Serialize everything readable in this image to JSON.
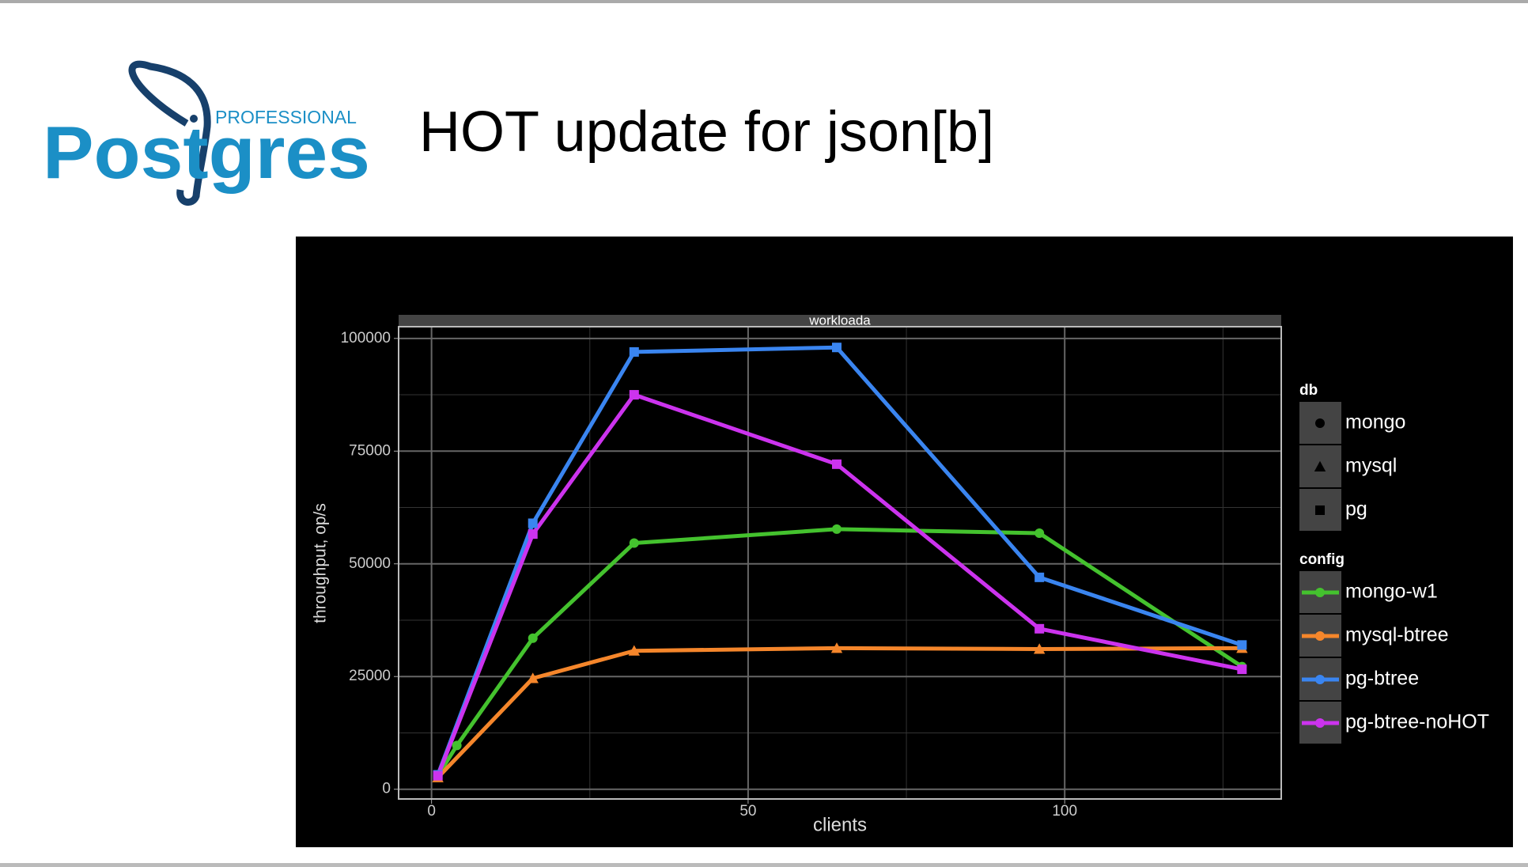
{
  "logo": {
    "name": "Postgres",
    "tag": "PROFESSIONAL"
  },
  "heading": "HOT update  for json[b]",
  "chart_data": {
    "type": "line",
    "strip": "workloada",
    "x_label": "clients",
    "y_label": "throughput, op/s",
    "xlim": [
      -5.2,
      134.2
    ],
    "xticks": [
      0,
      50,
      100
    ],
    "xminor": [
      25,
      75,
      125
    ],
    "ylim": [
      -2160,
      102600
    ],
    "yticks": [
      0,
      25000,
      50000,
      75000,
      100000
    ],
    "yminor": [
      12500,
      37500,
      62500,
      87500
    ],
    "grid": true,
    "shape_legend": {
      "title": "db",
      "items": [
        {
          "name": "mongo",
          "shape": "circle"
        },
        {
          "name": "mysql",
          "shape": "triangle"
        },
        {
          "name": "pg",
          "shape": "square"
        }
      ]
    },
    "legend_title": "config",
    "series": [
      {
        "name": "mongo-w1",
        "color": "#44c22e",
        "shape": "circle",
        "x": [
          1,
          4,
          16,
          32,
          64,
          96,
          128
        ],
        "values": [
          3000,
          9700,
          33500,
          54600,
          57700,
          56800,
          27200
        ]
      },
      {
        "name": "mysql-btree",
        "color": "#f5862b",
        "shape": "triangle",
        "x": [
          1,
          16,
          32,
          64,
          96,
          128
        ],
        "values": [
          2600,
          24600,
          30700,
          31300,
          31100,
          31300
        ]
      },
      {
        "name": "pg-btree",
        "color": "#3a85f0",
        "shape": "square",
        "x": [
          1,
          16,
          32,
          64,
          96,
          128
        ],
        "values": [
          3200,
          59000,
          97000,
          98000,
          47000,
          32000
        ]
      },
      {
        "name": "pg-btree-noHOT",
        "color": "#cc33ee",
        "shape": "square",
        "x": [
          1,
          16,
          32,
          64,
          96,
          128
        ],
        "values": [
          3000,
          56600,
          87500,
          72100,
          35600,
          26600
        ]
      }
    ]
  }
}
